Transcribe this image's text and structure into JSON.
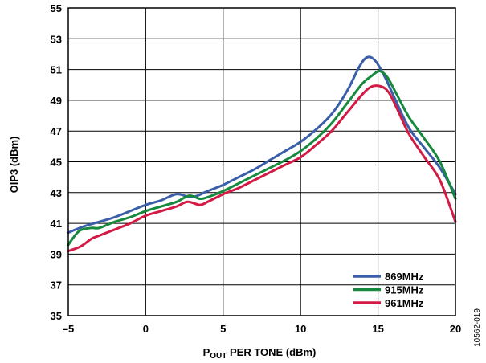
{
  "chart_data": {
    "type": "line",
    "title": "",
    "xlabel": {
      "main": "P",
      "sub": "OUT",
      "rest": " PER TONE (dBm)"
    },
    "ylabel": "OIP3 (dBm)",
    "xlim": [
      -5,
      20
    ],
    "ylim": [
      35,
      55
    ],
    "x_ticks": [
      -5,
      0,
      5,
      10,
      15,
      20
    ],
    "x_tick_labels": [
      "–5",
      "0",
      "5",
      "10",
      "15",
      "20"
    ],
    "y_ticks": [
      35,
      37,
      39,
      41,
      43,
      45,
      47,
      49,
      51,
      53,
      55
    ],
    "grid": true,
    "legend_position": "bottom-right",
    "figure_id": "10562-019",
    "series": [
      {
        "name": "869MHz",
        "color": "#3b5ea8",
        "points": [
          [
            -5,
            40.4
          ],
          [
            -4,
            40.8
          ],
          [
            -3,
            41.1
          ],
          [
            -2,
            41.4
          ],
          [
            -1,
            41.8
          ],
          [
            0,
            42.2
          ],
          [
            1,
            42.5
          ],
          [
            2,
            42.9
          ],
          [
            3,
            42.7
          ],
          [
            4,
            43.1
          ],
          [
            5,
            43.5
          ],
          [
            6,
            44.0
          ],
          [
            7,
            44.5
          ],
          [
            8,
            45.1
          ],
          [
            9,
            45.7
          ],
          [
            10,
            46.3
          ],
          [
            11,
            47.1
          ],
          [
            12,
            48.1
          ],
          [
            13,
            49.6
          ],
          [
            13.8,
            51.2
          ],
          [
            14.3,
            51.8
          ],
          [
            14.8,
            51.6
          ],
          [
            15.4,
            50.6
          ],
          [
            16,
            49.3
          ],
          [
            17,
            47.2
          ],
          [
            18,
            45.9
          ],
          [
            19,
            44.6
          ],
          [
            20,
            42.9
          ]
        ]
      },
      {
        "name": "915MHz",
        "color": "#16893c",
        "points": [
          [
            -5,
            39.6
          ],
          [
            -4.3,
            40.5
          ],
          [
            -3.5,
            40.7
          ],
          [
            -3,
            40.7
          ],
          [
            -2,
            41.1
          ],
          [
            -1,
            41.4
          ],
          [
            0,
            41.8
          ],
          [
            1,
            42.1
          ],
          [
            2,
            42.4
          ],
          [
            2.8,
            42.8
          ],
          [
            3.5,
            42.6
          ],
          [
            4,
            42.7
          ],
          [
            5,
            43.1
          ],
          [
            6,
            43.6
          ],
          [
            7,
            44.1
          ],
          [
            8,
            44.6
          ],
          [
            9,
            45.1
          ],
          [
            10,
            45.7
          ],
          [
            11,
            46.5
          ],
          [
            12,
            47.5
          ],
          [
            13,
            48.8
          ],
          [
            14,
            50.1
          ],
          [
            14.6,
            50.6
          ],
          [
            15.1,
            50.9
          ],
          [
            15.6,
            50.5
          ],
          [
            16.2,
            49.4
          ],
          [
            17,
            47.9
          ],
          [
            18,
            46.5
          ],
          [
            19,
            45.0
          ],
          [
            20,
            42.6
          ]
        ]
      },
      {
        "name": "961MHz",
        "color": "#d21a45",
        "points": [
          [
            -5,
            39.2
          ],
          [
            -4.2,
            39.5
          ],
          [
            -3.5,
            40.0
          ],
          [
            -3,
            40.2
          ],
          [
            -2,
            40.6
          ],
          [
            -1,
            41.0
          ],
          [
            0,
            41.5
          ],
          [
            1,
            41.8
          ],
          [
            2,
            42.1
          ],
          [
            2.7,
            42.4
          ],
          [
            3.5,
            42.2
          ],
          [
            4,
            42.4
          ],
          [
            5,
            42.9
          ],
          [
            6,
            43.3
          ],
          [
            7,
            43.8
          ],
          [
            8,
            44.3
          ],
          [
            9,
            44.8
          ],
          [
            10,
            45.3
          ],
          [
            11,
            46.1
          ],
          [
            12,
            47.0
          ],
          [
            13,
            48.2
          ],
          [
            14,
            49.4
          ],
          [
            14.6,
            49.9
          ],
          [
            15.2,
            49.9
          ],
          [
            15.7,
            49.5
          ],
          [
            16.3,
            48.3
          ],
          [
            17,
            46.8
          ],
          [
            18,
            45.3
          ],
          [
            19,
            43.8
          ],
          [
            20,
            41.1
          ]
        ]
      }
    ]
  }
}
